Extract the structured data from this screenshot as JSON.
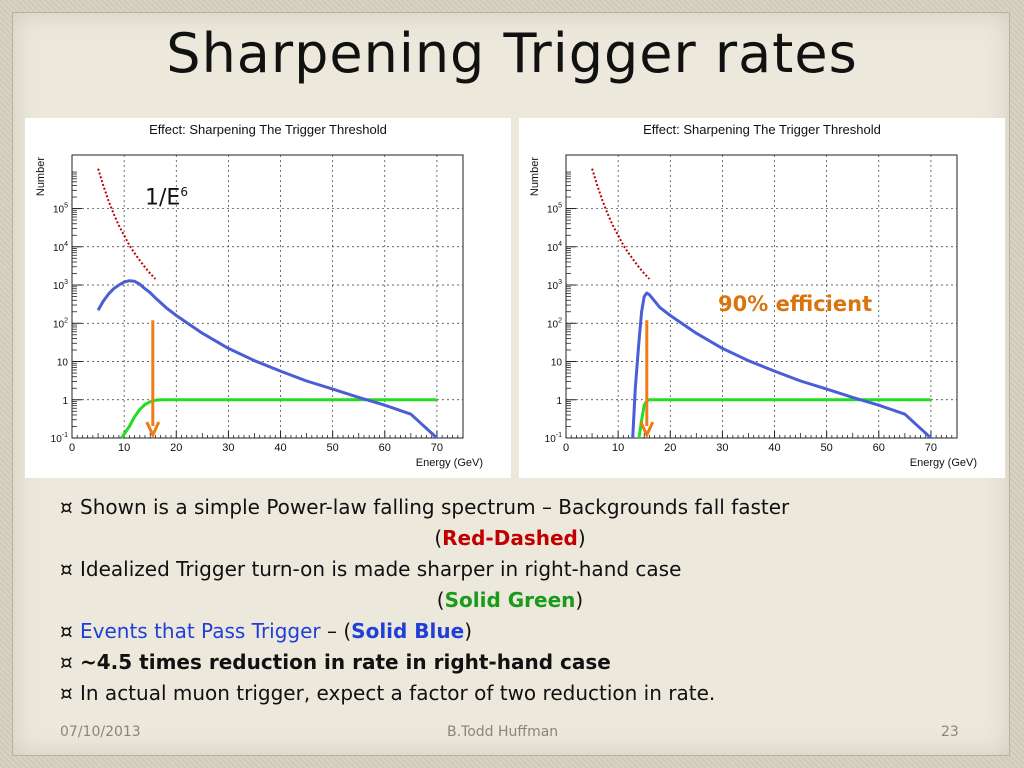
{
  "slide": {
    "title": "Sharpening Trigger rates",
    "footer": {
      "date": "07/10/2013",
      "author": "B.Todd Huffman",
      "page": "23"
    }
  },
  "annotations": {
    "left_base": "1/E",
    "left_sup": "6",
    "right": "90% efficient"
  },
  "bullets": {
    "marker": "¤",
    "b1_text": "Shown is a simple Power-law falling spectrum – Backgrounds fall faster",
    "b1_open": "(",
    "b1_red": "Red-Dashed",
    "b1_close": ")",
    "b2_text": "Idealized Trigger turn-on is made sharper in right-hand case",
    "b2_open": "(",
    "b2_green": "Solid Green",
    "b2_close": ")",
    "b3_blue": "Events that Pass Trigger",
    "b3_mid": " – (",
    "b3_blueb": "Solid Blue",
    "b3_close": ")",
    "b4_bold": "~4.5 times reduction in rate in right-hand case",
    "b5_text": "In actual muon trigger, expect a factor of two reduction in rate."
  },
  "colors": {
    "background": "#c00000",
    "threshold": "#22dd22",
    "passed": "#4a5fd6",
    "arrow": "#ee7d18"
  },
  "chart_data": [
    {
      "type": "line",
      "title": "Effect: Sharpening The Trigger Threshold",
      "xlabel": "Energy (GeV)",
      "ylabel": "Number",
      "xlim": [
        0,
        75
      ],
      "ylim_log10": [
        -1,
        6.4
      ],
      "y_scale": "log",
      "grid": true,
      "x_ticks": [
        "0",
        "10",
        "20",
        "30",
        "40",
        "50",
        "60",
        "70"
      ],
      "y_ticks": [
        "10-1",
        "1",
        "10",
        "102",
        "103",
        "104",
        "105"
      ],
      "series": [
        {
          "style": "red-dashed",
          "x": [
            5,
            6,
            7,
            8,
            9,
            10,
            11,
            12,
            13,
            14,
            15,
            16
          ],
          "y": [
            1100000,
            400000,
            160000,
            72000,
            36000,
            20000,
            11000,
            6800,
            4400,
            2900,
            2000,
            1450
          ]
        },
        {
          "style": "solid-blue",
          "x": [
            5,
            6,
            7,
            8,
            9,
            10,
            11,
            12,
            13,
            14,
            15,
            16,
            18,
            20,
            25,
            30,
            35,
            40,
            45,
            50,
            55,
            60,
            65,
            70
          ],
          "y": [
            220,
            380,
            580,
            800,
            1000,
            1200,
            1300,
            1250,
            1050,
            800,
            630,
            460,
            260,
            160,
            55,
            22,
            10.5,
            5.6,
            3.1,
            1.9,
            1.15,
            0.72,
            0.42,
            0.1
          ]
        },
        {
          "style": "solid-green",
          "x": [
            9.5,
            11,
            12,
            13,
            14,
            15,
            16,
            17,
            18,
            70
          ],
          "y": [
            0.1,
            0.2,
            0.36,
            0.56,
            0.75,
            0.89,
            0.97,
            1,
            1,
            1
          ]
        }
      ],
      "arrow_energy": 15.5
    },
    {
      "type": "line",
      "title": "Effect: Sharpening The Trigger Threshold",
      "xlabel": "Energy (GeV)",
      "ylabel": "Number",
      "xlim": [
        0,
        75
      ],
      "ylim_log10": [
        -1,
        6.4
      ],
      "y_scale": "log",
      "grid": true,
      "x_ticks": [
        "0",
        "10",
        "20",
        "30",
        "40",
        "50",
        "60",
        "70"
      ],
      "y_ticks": [
        "10-1",
        "1",
        "10",
        "102",
        "103",
        "104",
        "105"
      ],
      "series": [
        {
          "style": "red-dashed",
          "x": [
            5,
            6,
            7,
            8,
            9,
            10,
            11,
            12,
            13,
            14,
            15,
            16
          ],
          "y": [
            1100000,
            400000,
            160000,
            72000,
            36000,
            20000,
            11000,
            6800,
            4400,
            2900,
            2000,
            1450
          ]
        },
        {
          "style": "solid-blue",
          "x": [
            12.8,
            13.3,
            14,
            14.5,
            15,
            15.5,
            16,
            17,
            18,
            20,
            25,
            30,
            35,
            40,
            45,
            50,
            55,
            60,
            65,
            70
          ],
          "y": [
            0.1,
            2,
            35,
            200,
            500,
            620,
            560,
            380,
            260,
            160,
            55,
            22,
            10.5,
            5.6,
            3.1,
            1.9,
            1.15,
            0.72,
            0.42,
            0.1
          ]
        },
        {
          "style": "solid-green",
          "x": [
            14,
            14.6,
            15,
            15.6,
            16,
            70
          ],
          "y": [
            0.1,
            0.35,
            0.72,
            0.97,
            1,
            1
          ]
        }
      ],
      "arrow_energy": 15.5
    }
  ]
}
